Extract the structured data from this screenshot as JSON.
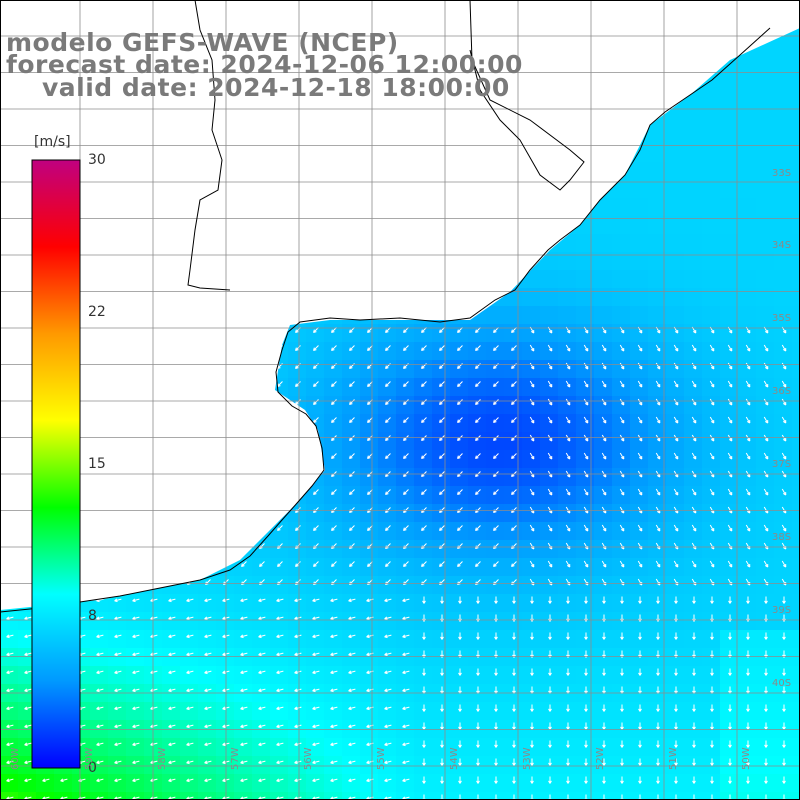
{
  "title": {
    "model": "modelo GEFS-WAVE (NCEP)",
    "forecast": "forecast date: 2024-12-06 12:00:00",
    "valid": "valid date: 2024-12-18 18:00:00"
  },
  "colorbar": {
    "unit": "[m/s]",
    "ticks": [
      "30",
      "22",
      "15",
      "8",
      "0"
    ],
    "tick_values": [
      30,
      22,
      15,
      8,
      0
    ],
    "min": 0,
    "max": 30,
    "colors": [
      "#0000ff",
      "#0099ff",
      "#00ffff",
      "#00ff00",
      "#ffff00",
      "#ff9900",
      "#ff0000",
      "#c00080"
    ]
  },
  "map": {
    "lat_labels": [
      "33S",
      "34S",
      "35S",
      "36S",
      "37S",
      "38S",
      "39S",
      "40S"
    ],
    "lon_labels": [
      "60W",
      "59W",
      "58W",
      "57W",
      "56W",
      "55W",
      "54W",
      "53W",
      "52W",
      "51W",
      "50W"
    ],
    "land_color": "#ffffff",
    "grid_color": "#8c8c8c",
    "coast_color": "#000000",
    "arrow_color": "#ffffff",
    "variable": "wind speed and direction"
  }
}
